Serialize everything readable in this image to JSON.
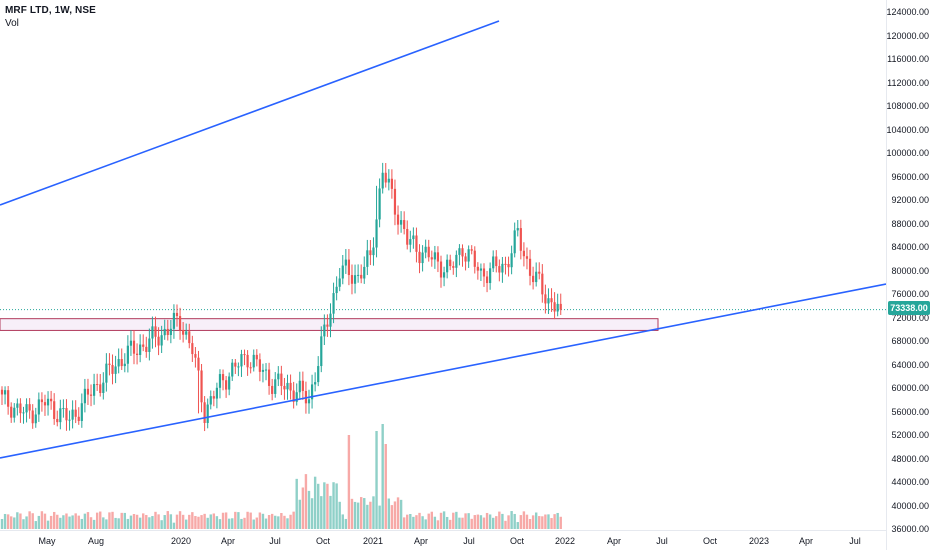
{
  "header": {
    "symbol_line": "MRF LTD, 1W, NSE",
    "volume_label": "Vol"
  },
  "colors": {
    "up": "#26a69a",
    "down": "#ef5350",
    "up_volume": "#8fd0c8",
    "down_volume": "#f7a9a7",
    "trendline": "#2962ff",
    "zone_border": "#b03a5b",
    "price_line": "#26a69a"
  },
  "last_price_label": "73338.00",
  "price_axis_labels": [
    "124000.00",
    "120000.00",
    "116000.00",
    "112000.00",
    "108000.00",
    "104000.00",
    "100000.00",
    "96000.00",
    "92000.00",
    "88000.00",
    "84000.00",
    "80000.00",
    "76000.00",
    "72000.00",
    "68000.00",
    "64000.00",
    "60000.00",
    "56000.00",
    "52000.00",
    "48000.00",
    "44000.00",
    "40000.00",
    "36000.00"
  ],
  "time_axis_labels": [
    "May",
    "Aug",
    "2020",
    "Apr",
    "Jul",
    "Oct",
    "2021",
    "Apr",
    "Jul",
    "Oct",
    "2022",
    "Apr",
    "Jul",
    "Oct",
    "2023",
    "Apr",
    "Jul"
  ],
  "chart_data": {
    "type": "candlestick",
    "interval": "1W",
    "ylim": [
      35000,
      125500
    ],
    "last_price": 73338,
    "key_points": [
      {
        "date": "2019-05",
        "close": 58000
      },
      {
        "date": "2019-08",
        "close": 54500
      },
      {
        "date": "2020-01",
        "close": 71000
      },
      {
        "date": "2020-03",
        "low": 50000
      },
      {
        "date": "2020-07",
        "close": 66000
      },
      {
        "date": "2020-10",
        "close": 58500
      },
      {
        "date": "2020-12",
        "close": 80000
      },
      {
        "date": "2021-02",
        "high": 99000
      },
      {
        "date": "2021-04",
        "close": 82000
      },
      {
        "date": "2021-07",
        "close": 80000
      },
      {
        "date": "2021-10",
        "close": 86000
      },
      {
        "date": "2021-12",
        "close": 73338
      }
    ],
    "support_zone": {
      "from": 69800,
      "to": 71800
    },
    "trendlines": [
      {
        "name": "upper",
        "from": {
          "date": "2018-12",
          "price": 91000
        },
        "to": {
          "date": "2021-08",
          "price": 123000
        }
      },
      {
        "name": "lower",
        "from": {
          "date": "2018-12",
          "price": 48000
        },
        "to": {
          "date": "2023-10",
          "price": 77000
        }
      }
    ]
  }
}
